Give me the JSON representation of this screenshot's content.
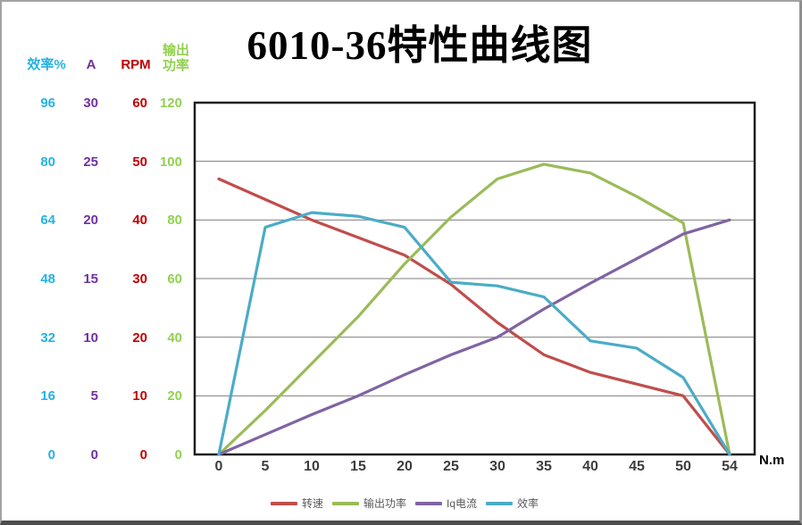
{
  "title": "6010-36特性曲线图",
  "x_axis": {
    "unit_label": "N.m",
    "categories": [
      "0",
      "5",
      "10",
      "15",
      "20",
      "25",
      "30",
      "35",
      "40",
      "45",
      "50",
      "54"
    ]
  },
  "y_axes": [
    {
      "id": "efficiency",
      "label": "效率%",
      "color": "#25b2e3",
      "max": 96,
      "ticks": [
        "96",
        "80",
        "64",
        "48",
        "32",
        "16",
        "0"
      ]
    },
    {
      "id": "current",
      "label": "A",
      "color": "#7030a0",
      "max": 30,
      "ticks": [
        "30",
        "25",
        "20",
        "15",
        "10",
        "5",
        "0"
      ]
    },
    {
      "id": "rpm",
      "label": "RPM",
      "color": "#c00000",
      "max": 60,
      "ticks": [
        "60",
        "50",
        "40",
        "30",
        "20",
        "10",
        "0"
      ]
    },
    {
      "id": "power",
      "label": "输出功率",
      "color": "#92d050",
      "max": 120,
      "ticks": [
        "120",
        "100",
        "80",
        "60",
        "40",
        "20",
        "0"
      ]
    }
  ],
  "chart_data": {
    "type": "line",
    "title": "6010-36特性曲线图",
    "xlabel": "N.m",
    "x_axis_type": "category",
    "categories": [
      0,
      5,
      10,
      15,
      20,
      25,
      30,
      35,
      40,
      45,
      50,
      54
    ],
    "series": [
      {
        "name": "转速",
        "axis": "RPM",
        "axis_range": [
          0,
          60
        ],
        "color": "#bf4e4b",
        "values": [
          47,
          43.5,
          40,
          37,
          34,
          29,
          22.5,
          17,
          14,
          12,
          10,
          0
        ]
      },
      {
        "name": "输出功率",
        "axis": "输出功率",
        "axis_range": [
          0,
          120
        ],
        "color": "#9bbb59",
        "values": [
          0,
          15,
          31,
          47,
          65,
          81,
          94,
          99,
          96,
          88,
          79,
          0
        ]
      },
      {
        "name": "Iq电流",
        "axis": "A",
        "axis_range": [
          0,
          30
        ],
        "color": "#8064a2",
        "values": [
          0,
          1.7,
          3.4,
          5,
          6.8,
          8.5,
          10,
          12.4,
          14.6,
          16.7,
          18.8,
          20
        ]
      },
      {
        "name": "效率",
        "axis": "效率%",
        "axis_range": [
          0,
          96
        ],
        "color": "#4bacc6",
        "values": [
          0,
          62,
          66,
          65,
          62,
          47,
          46,
          43,
          31,
          29,
          21,
          0
        ]
      }
    ],
    "grid": "horizontal",
    "gridline_interval_plot_units": 20,
    "legend_position": "bottom",
    "legend": [
      "转速",
      "输出功率",
      "Iq电流",
      "效率"
    ]
  }
}
